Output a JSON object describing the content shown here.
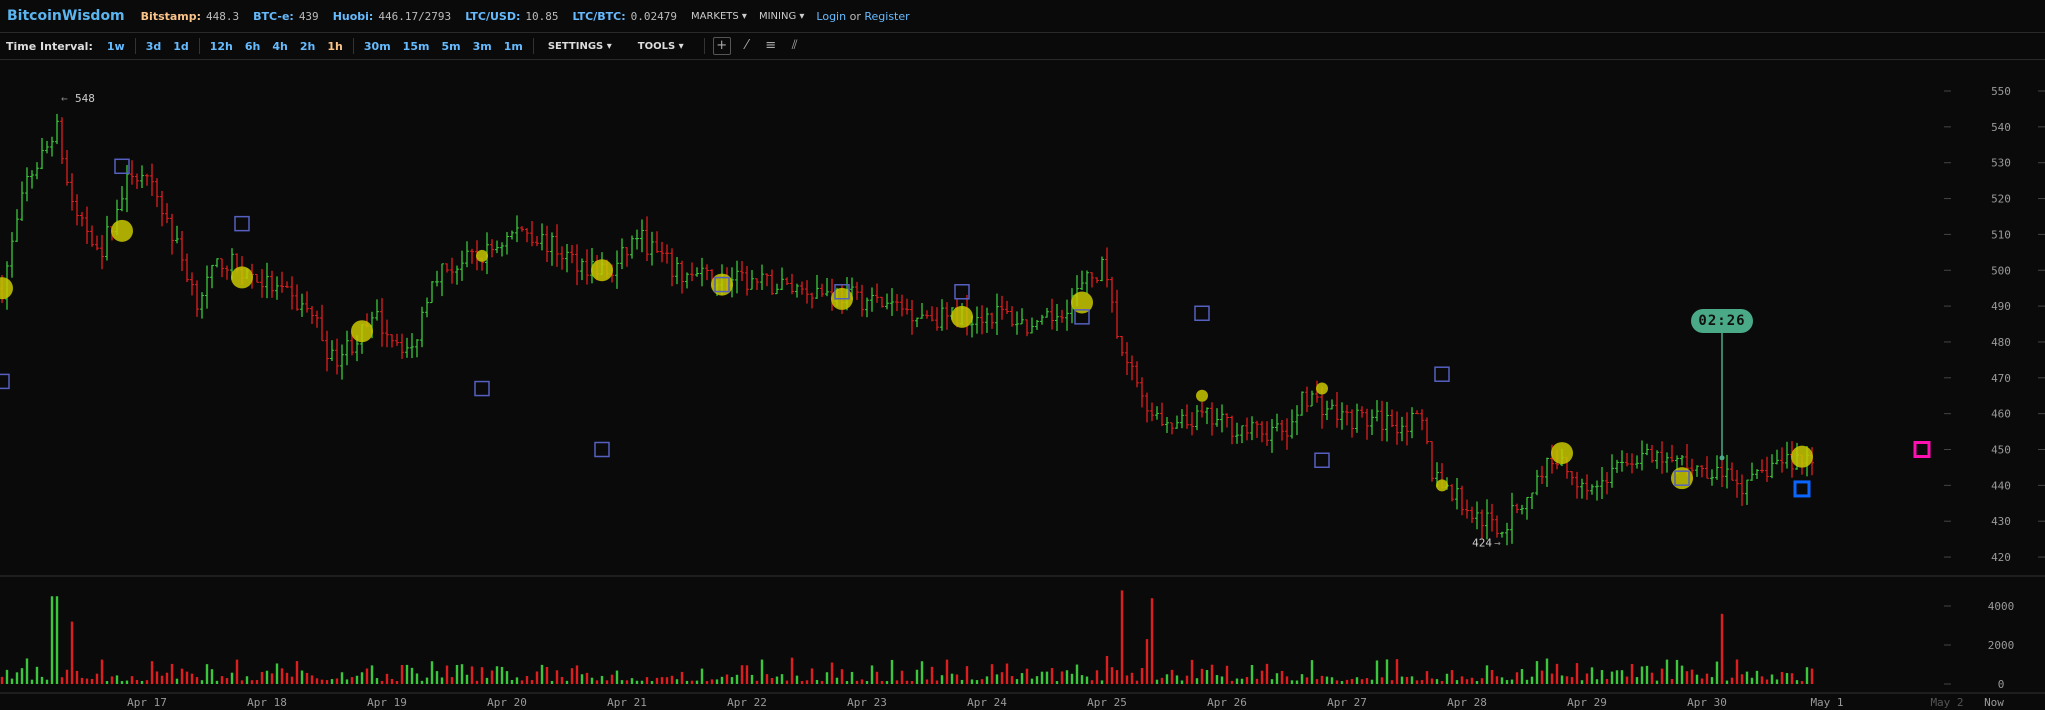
{
  "header": {
    "logo": "BitcoinWisdom",
    "tickers": [
      {
        "label": "Bitstamp:",
        "value": "448.3",
        "active": true
      },
      {
        "label": "BTC-e:",
        "value": "439"
      },
      {
        "label": "Huobi:",
        "value": "446.17/2793"
      },
      {
        "label": "LTC/USD:",
        "value": "10.85"
      },
      {
        "label": "LTC/BTC:",
        "value": "0.02479"
      }
    ],
    "menus": [
      "MARKETS",
      "MINING"
    ],
    "login": "Login",
    "or": "or",
    "register": "Register"
  },
  "toolbar": {
    "time_interval_label": "Time Interval:",
    "intervals": [
      [
        "1w"
      ],
      [
        "3d",
        "1d"
      ],
      [
        "12h",
        "6h",
        "4h",
        "2h",
        "1h"
      ],
      [
        "30m",
        "15m",
        "5m",
        "3m",
        "1m"
      ]
    ],
    "active_interval": "1h",
    "settings": "SETTINGS",
    "tools": "TOOLS",
    "tool_icons": [
      "crosshair-icon",
      "line-icon",
      "horizontal-lines-icon",
      "fan-icon"
    ]
  },
  "chart_data": {
    "type": "ohlc",
    "interval": "1h",
    "grid": false,
    "price_axis": {
      "ticks": [
        550,
        540,
        530,
        520,
        510,
        500,
        490,
        480,
        470,
        460,
        450,
        440,
        430,
        420
      ],
      "range": [
        420,
        550
      ]
    },
    "volume_axis": {
      "ticks": [
        4000,
        2000,
        0
      ],
      "range": [
        0,
        4800
      ]
    },
    "x_ticks": [
      "Apr 17",
      "Apr 18",
      "Apr 19",
      "Apr 20",
      "Apr 21",
      "Apr 22",
      "Apr 23",
      "Apr 24",
      "Apr 25",
      "Apr 26",
      "Apr 27",
      "Apr 28",
      "Apr 29",
      "Apr 30",
      "May 1",
      "May 2",
      "Now"
    ],
    "price_path": [
      [
        "Apr 15 19:00",
        495
      ],
      [
        "Apr 16 00:00",
        525
      ],
      [
        "Apr 16 06:00",
        539
      ],
      [
        "Apr 16 09:00",
        517
      ],
      [
        "Apr 16 15:00",
        506
      ],
      [
        "Apr 16 21:00",
        528
      ],
      [
        "Apr 17 02:00",
        521
      ],
      [
        "Apr 17 10:00",
        492
      ],
      [
        "Apr 17 15:00",
        503
      ],
      [
        "Apr 17 23:00",
        497
      ],
      [
        "Apr 18 09:00",
        488
      ],
      [
        "Apr 18 13:00",
        475
      ],
      [
        "Apr 18 22:00",
        486
      ],
      [
        "Apr 19 05:00",
        477
      ],
      [
        "Apr 19 09:00",
        499
      ],
      [
        "Apr 19 19:00",
        504
      ],
      [
        "Apr 20 03:00",
        512
      ],
      [
        "Apr 20 13:00",
        503
      ],
      [
        "Apr 20 21:00",
        499
      ],
      [
        "Apr 21 02:00",
        510
      ],
      [
        "Apr 21 10:00",
        499
      ],
      [
        "Apr 21 21:00",
        497
      ],
      [
        "Apr 22 12:00",
        495
      ],
      [
        "Apr 22 23:00",
        492
      ],
      [
        "Apr 23 14:00",
        487
      ],
      [
        "Apr 24 03:00",
        488
      ],
      [
        "Apr 24 10:00",
        483
      ],
      [
        "Apr 24 14:00",
        488
      ],
      [
        "Apr 24 23:00",
        501
      ],
      [
        "Apr 25 03:00",
        477
      ],
      [
        "Apr 25 08:00",
        463
      ],
      [
        "Apr 25 12:00",
        455
      ],
      [
        "Apr 25 19:00",
        459
      ],
      [
        "Apr 26 05:00",
        455
      ],
      [
        "Apr 26 13:00",
        455
      ],
      [
        "Apr 26 15:00",
        466
      ],
      [
        "Apr 26 23:00",
        459
      ],
      [
        "Apr 27 15:00",
        457
      ],
      [
        "Apr 27 17:00",
        444
      ],
      [
        "Apr 28 01:00",
        432
      ],
      [
        "Apr 28 07:00",
        428
      ],
      [
        "Apr 28 12:00",
        437
      ],
      [
        "Apr 28 17:00",
        448
      ],
      [
        "Apr 29 01:00",
        439
      ],
      [
        "Apr 29 09:00",
        448
      ],
      [
        "Apr 29 19:00",
        446
      ],
      [
        "Apr 30 03:00",
        444
      ],
      [
        "Apr 30 08:00",
        439
      ],
      [
        "Apr 30 13:00",
        446
      ],
      [
        "Apr 30 21:00",
        448
      ]
    ],
    "volume_spikes": [
      [
        "Apr 16 05:00",
        4500
      ],
      [
        "Apr 16 06:00",
        4500
      ],
      [
        "Apr 16 09:00",
        3200
      ],
      [
        "Apr 25 03:00",
        4800
      ],
      [
        "Apr 25 09:00",
        4400
      ],
      [
        "Apr 25 08:00",
        2300
      ],
      [
        "Apr 30 03:00",
        3600
      ]
    ],
    "high_label": "548",
    "low_label": "424",
    "high": 548,
    "high_time": "Apr 16 06:00",
    "low": 424,
    "low_time": "Apr 28 07:00",
    "circle_markers": [
      [
        "Apr 15 19:00",
        495
      ],
      [
        "Apr 16 19:00",
        511
      ],
      [
        "Apr 17 19:00",
        498
      ],
      [
        "Apr 18 19:00",
        483
      ],
      [
        "Apr 19 19:00",
        504,
        "small"
      ],
      [
        "Apr 20 19:00",
        500
      ],
      [
        "Apr 21 19:00",
        496
      ],
      [
        "Apr 22 19:00",
        492
      ],
      [
        "Apr 23 19:00",
        487
      ],
      [
        "Apr 24 19:00",
        491
      ],
      [
        "Apr 25 19:00",
        465,
        "small"
      ],
      [
        "Apr 26 19:00",
        467,
        "small"
      ],
      [
        "Apr 27 19:00",
        440,
        "small"
      ],
      [
        "Apr 28 19:00",
        449
      ],
      [
        "Apr 29 19:00",
        442
      ],
      [
        "Apr 30 19:00",
        448
      ]
    ],
    "square_markers": [
      [
        "Apr 15 19:00",
        469
      ],
      [
        "Apr 16 19:00",
        529
      ],
      [
        "Apr 17 19:00",
        513
      ],
      [
        "Apr 19 19:00",
        467
      ],
      [
        "Apr 20 19:00",
        450
      ],
      [
        "Apr 21 19:00",
        496
      ],
      [
        "Apr 22 19:00",
        494
      ],
      [
        "Apr 23 19:00",
        494
      ],
      [
        "Apr 24 19:00",
        487
      ],
      [
        "Apr 25 19:00",
        488
      ],
      [
        "Apr 26 19:00",
        447
      ],
      [
        "Apr 27 19:00",
        471
      ],
      [
        "Apr 29 19:00",
        442
      ]
    ],
    "current_square": [
      "Apr 30 19:00",
      439
    ],
    "forecast_square": [
      "May 1 19:00",
      450
    ],
    "countdown": "02:26",
    "countdown_time": "Apr 30 03:00",
    "countdown_price": 446,
    "colors": {
      "up": "#3cc63c",
      "down": "#dd1e1e",
      "circle": "#c8c800",
      "square": "#5560c0",
      "current": "#0a66ff",
      "forecast": "#ff10b0",
      "countdown": "#4aaa88"
    }
  }
}
